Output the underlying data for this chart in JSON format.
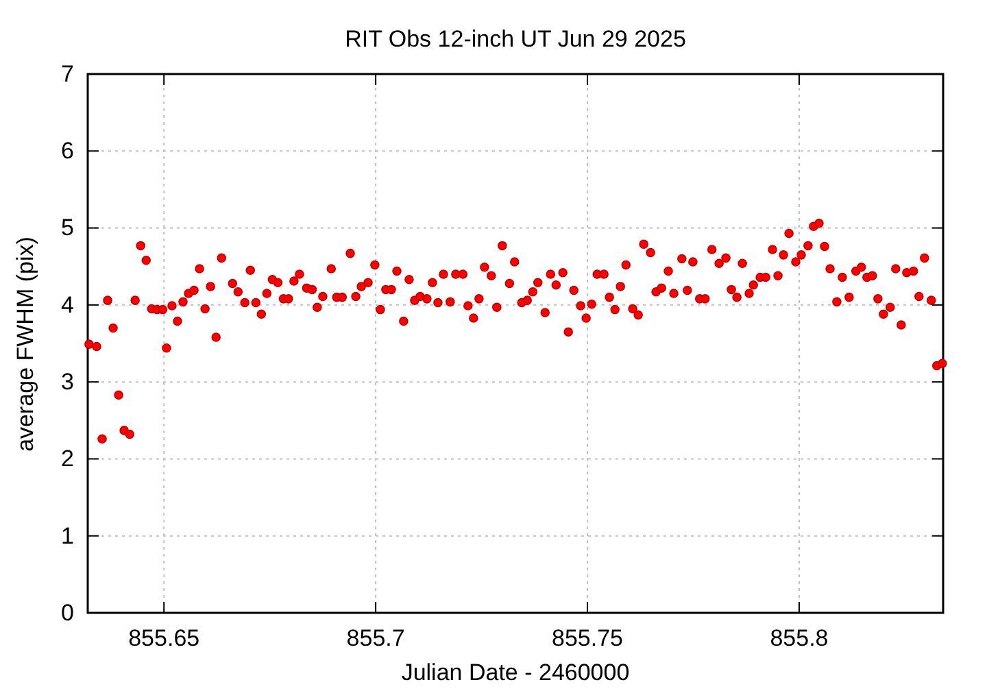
{
  "chart_data": {
    "type": "scatter",
    "title": "RIT Obs 12-inch UT Jun 29 2025",
    "xlabel": "Julian Date - 2460000",
    "ylabel": "average FWHM (pix)",
    "x": [
      855.6323,
      855.6341,
      855.6354,
      855.6367,
      855.638,
      855.6393,
      855.6406,
      855.6419,
      855.6432,
      855.6445,
      855.6458,
      855.6471,
      855.6484,
      855.6497,
      855.6506,
      855.6519,
      855.6532,
      855.6545,
      855.6558,
      855.6571,
      855.6584,
      855.6597,
      855.661,
      855.6623,
      855.6636,
      855.6662,
      855.6675,
      855.6691,
      855.6704,
      855.6717,
      855.673,
      855.6743,
      855.6756,
      855.6769,
      855.6782,
      855.6794,
      855.6807,
      855.682,
      855.6837,
      855.685,
      855.6862,
      855.6875,
      855.6895,
      855.6908,
      855.6921,
      855.694,
      855.6953,
      855.6966,
      855.6982,
      855.6998,
      855.7011,
      855.7024,
      855.7037,
      855.705,
      855.7066,
      855.7079,
      855.7092,
      855.7105,
      855.7121,
      855.7134,
      855.7147,
      855.716,
      855.7176,
      855.7189,
      855.7206,
      855.7218,
      855.7231,
      855.7244,
      855.7257,
      855.7273,
      855.7286,
      855.7299,
      855.7316,
      855.7328,
      855.7345,
      855.7358,
      855.7371,
      855.7383,
      855.74,
      855.7413,
      855.7426,
      855.7442,
      855.7455,
      855.7468,
      855.7484,
      855.7497,
      855.751,
      855.7523,
      855.7539,
      855.7552,
      855.7565,
      855.7578,
      855.7591,
      855.7607,
      855.762,
      855.7633,
      855.7649,
      855.7662,
      855.7675,
      855.7691,
      855.7704,
      855.7723,
      855.7736,
      855.7749,
      855.7765,
      855.7778,
      855.7794,
      855.7811,
      855.7827,
      855.784,
      855.7853,
      855.7866,
      855.7882,
      855.7892,
      855.7908,
      855.7921,
      855.7937,
      855.795,
      855.7963,
      855.7976,
      855.7992,
      855.8005,
      855.8021,
      855.8034,
      855.8047,
      855.806,
      855.8073,
      855.8089,
      855.8102,
      855.8118,
      855.8134,
      855.8147,
      855.816,
      855.8173,
      855.8186,
      855.8199,
      855.8215,
      855.8228,
      855.8241,
      855.8254,
      855.827,
      855.8283,
      855.8296,
      855.8312,
      855.8325,
      855.8338
    ],
    "series": [
      {
        "color": "#ff0000",
        "values": [
          3.49,
          3.46,
          2.26,
          4.06,
          3.7,
          2.83,
          2.37,
          2.32,
          4.06,
          4.77,
          4.58,
          3.95,
          3.94,
          3.94,
          3.44,
          3.99,
          3.79,
          4.04,
          4.15,
          4.19,
          4.47,
          3.95,
          4.24,
          3.58,
          4.61,
          4.28,
          4.17,
          4.03,
          4.45,
          4.03,
          3.88,
          4.15,
          4.33,
          4.29,
          4.08,
          4.08,
          4.31,
          4.4,
          4.22,
          4.2,
          3.97,
          4.11,
          4.47,
          4.1,
          4.1,
          4.67,
          4.11,
          4.24,
          4.29,
          4.52,
          3.94,
          4.2,
          4.2,
          4.44,
          3.79,
          4.33,
          4.06,
          4.11,
          4.08,
          4.29,
          4.03,
          4.4,
          4.04,
          4.4,
          4.4,
          3.99,
          3.83,
          4.08,
          4.49,
          4.38,
          3.97,
          4.77,
          4.28,
          4.56,
          4.03,
          4.06,
          4.17,
          4.29,
          3.9,
          4.4,
          4.26,
          4.42,
          3.65,
          4.19,
          3.99,
          3.83,
          4.01,
          4.4,
          4.4,
          4.1,
          3.94,
          4.24,
          4.52,
          3.95,
          3.87,
          4.79,
          4.68,
          4.17,
          4.22,
          4.44,
          4.15,
          4.6,
          4.19,
          4.56,
          4.08,
          4.08,
          4.72,
          4.54,
          4.61,
          4.2,
          4.1,
          4.54,
          4.15,
          4.26,
          4.36,
          4.36,
          4.72,
          4.38,
          4.65,
          4.93,
          4.56,
          4.65,
          4.77,
          5.02,
          5.06,
          4.76,
          4.47,
          4.04,
          4.36,
          4.1,
          4.44,
          4.49,
          4.36,
          4.38,
          4.08,
          3.88,
          3.97,
          4.47,
          3.74,
          4.42,
          4.44,
          4.11,
          4.61,
          4.06,
          3.21,
          3.24
        ]
      }
    ],
    "xlim": [
      855.632,
      855.834
    ],
    "xticks": [
      855.65,
      855.7,
      855.75,
      855.8
    ],
    "ylim": [
      0,
      7
    ],
    "yticks": [
      0,
      1,
      2,
      3,
      4,
      5,
      6,
      7
    ],
    "grid": true,
    "marker": "circle"
  }
}
